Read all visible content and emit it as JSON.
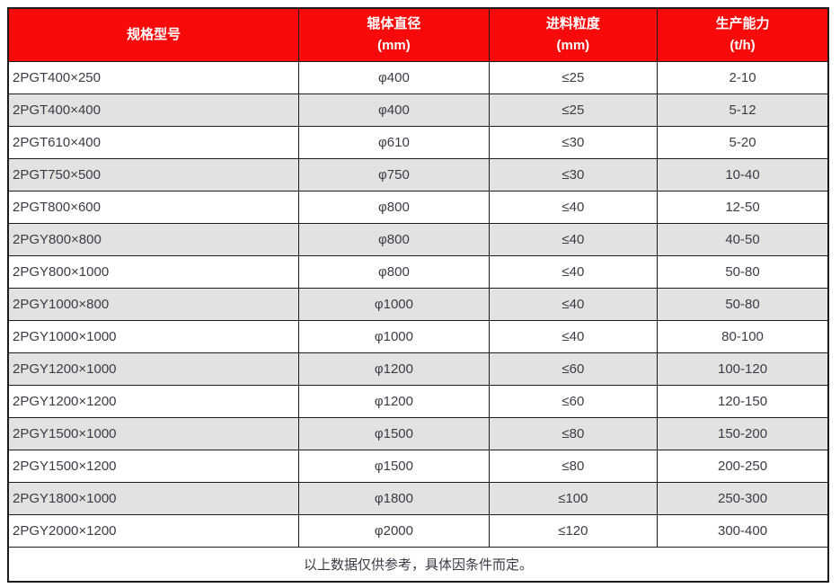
{
  "table": {
    "headers": [
      {
        "label": "规格型号",
        "unit": ""
      },
      {
        "label": "辊体直径",
        "unit": "(mm)"
      },
      {
        "label": "进料粒度",
        "unit": "(mm)"
      },
      {
        "label": "生产能力",
        "unit": "(t/h)"
      }
    ],
    "rows": [
      [
        "2PGT400×250",
        "φ400",
        "≤25",
        "2-10"
      ],
      [
        "2PGT400×400",
        "φ400",
        "≤25",
        "5-12"
      ],
      [
        "2PGT610×400",
        "φ610",
        "≤30",
        "5-20"
      ],
      [
        "2PGT750×500",
        "φ750",
        "≤30",
        "10-40"
      ],
      [
        "2PGT800×600",
        "φ800",
        "≤40",
        "12-50"
      ],
      [
        "2PGY800×800",
        "φ800",
        "≤40",
        "40-50"
      ],
      [
        "2PGY800×1000",
        "φ800",
        "≤40",
        "50-80"
      ],
      [
        "2PGY1000×800",
        "φ1000",
        "≤40",
        "50-80"
      ],
      [
        "2PGY1000×1000",
        "φ1000",
        "≤40",
        "80-100"
      ],
      [
        "2PGY1200×1000",
        "φ1200",
        "≤60",
        "100-120"
      ],
      [
        "2PGY1200×1200",
        "φ1200",
        "≤60",
        "120-150"
      ],
      [
        "2PGY1500×1000",
        "φ1500",
        "≤80",
        "150-200"
      ],
      [
        "2PGY1500×1200",
        "φ1500",
        "≤80",
        "200-250"
      ],
      [
        "2PGY1800×1000",
        "φ1800",
        "≤100",
        "250-300"
      ],
      [
        "2PGY2000×1200",
        "φ2000",
        "≤120",
        "300-400"
      ]
    ],
    "footnote": "以上数据仅供参考，具体因条件而定。"
  },
  "colors": {
    "header_bg": "#f80a0a",
    "header_text": "#ffffff",
    "stripe_bg": "#e2e2e2",
    "body_text": "#3c3c46",
    "border": "#1b1b1b"
  }
}
